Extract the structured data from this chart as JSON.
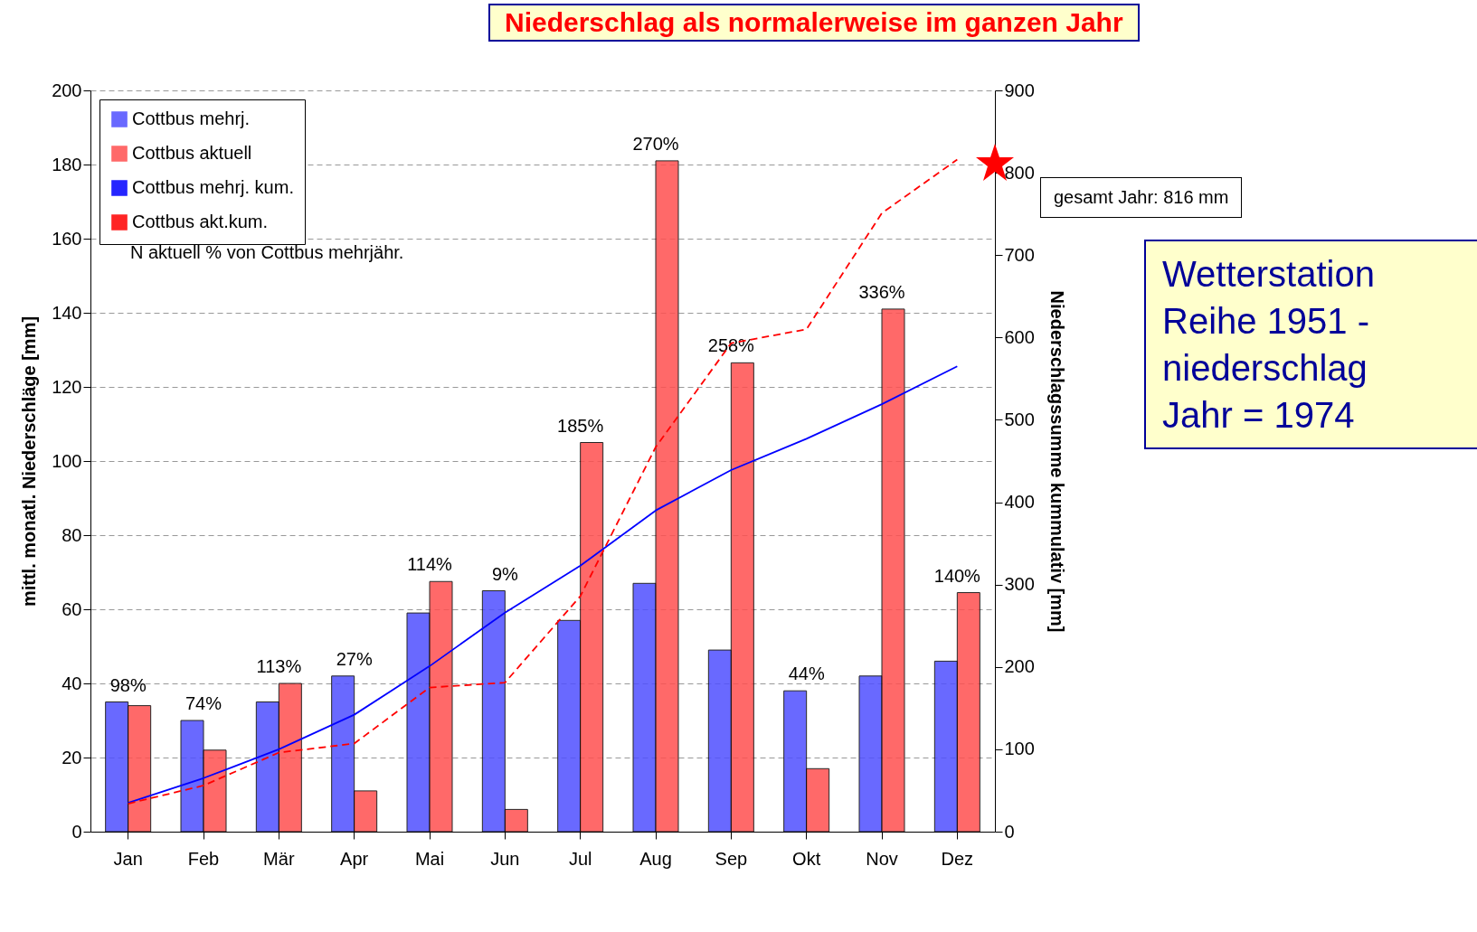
{
  "chart_data": {
    "type": "bar",
    "title": "Niederschlag als normalerweise im ganzen Jahr",
    "categories": [
      "Jan",
      "Feb",
      "Mär",
      "Apr",
      "Mai",
      "Jun",
      "Jul",
      "Aug",
      "Sep",
      "Okt",
      "Nov",
      "Dez"
    ],
    "series": [
      {
        "name": "Cottbus mehrj.",
        "color": "#5050ff",
        "values": [
          35,
          30,
          35,
          42,
          59,
          65,
          57,
          67,
          49,
          38,
          42,
          46
        ]
      },
      {
        "name": "Cottbus aktuell",
        "color": "#ff5050",
        "values": [
          34,
          22,
          40,
          11,
          67.5,
          6,
          105,
          181,
          126.5,
          17,
          141,
          64.5
        ]
      },
      {
        "name": "Cottbus mehrj. kum.",
        "type": "line",
        "axis": "y2",
        "color": "#0000ff",
        "line_style": "solid",
        "values": [
          35,
          65,
          100,
          142,
          201,
          266,
          323,
          390,
          439,
          477,
          519,
          565
        ]
      },
      {
        "name": "Cottbus akt.kum.",
        "type": "line",
        "axis": "y2",
        "color": "#ff0000",
        "line_style": "dashed",
        "values": [
          34,
          56,
          96,
          107,
          175,
          181,
          286,
          467,
          593,
          610,
          751,
          816
        ]
      }
    ],
    "ylabel": "mittl. monatl. Niederschläge [mm]",
    "y2label": "Niederschlagssumme kummulativ [mm]",
    "ylim": [
      0,
      200
    ],
    "yticks": [
      0,
      20,
      40,
      60,
      80,
      100,
      120,
      140,
      160,
      180,
      200
    ],
    "y2lim": [
      0,
      900
    ],
    "y2ticks": [
      0,
      100,
      200,
      300,
      400,
      500,
      600,
      700,
      800,
      900
    ],
    "grid": "y",
    "legend": "top left",
    "annotations": [
      "N aktuell    % von Cottbus mehrjähr.",
      "gesamt Jahr: 816 mm",
      "Wetterstation",
      "Reihe 1951 -",
      "niederschlag",
      "Jahr = 1974",
      {
        "text": "98%",
        "x": "Jan",
        "y": 35
      },
      {
        "text": "74%",
        "x": "Feb",
        "y": 30
      },
      {
        "text": "113%",
        "x": "Mär",
        "y": 40
      },
      {
        "text": "27%",
        "x": "Apr",
        "y": 42
      },
      {
        "text": "114%",
        "x": "Mai",
        "y": 67.5
      },
      {
        "text": "9%",
        "x": "Jun",
        "y": 65
      },
      {
        "text": "185%",
        "x": "Jul",
        "y": 105
      },
      {
        "text": "270%",
        "x": "Aug",
        "y": 181
      },
      {
        "text": "258%",
        "x": "Sep",
        "y": 126.5
      },
      {
        "text": "44%",
        "x": "Okt",
        "y": 38
      },
      {
        "text": "336%",
        "x": "Nov",
        "y": 141
      },
      {
        "text": "140%",
        "x": "Dez",
        "y": 64.5
      }
    ]
  }
}
